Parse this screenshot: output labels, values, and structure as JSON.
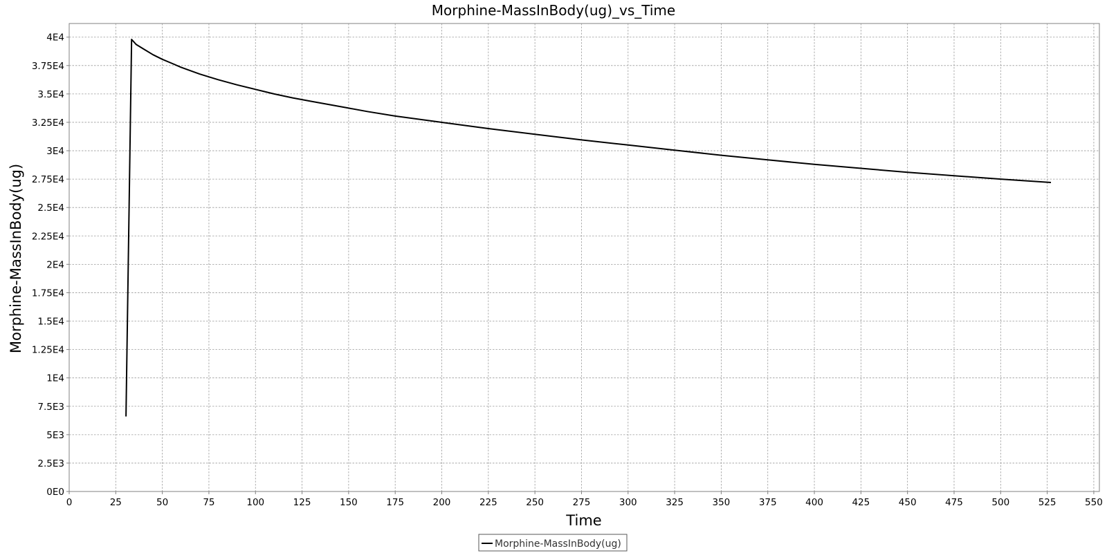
{
  "chart_data": {
    "type": "line",
    "title": "Morphine-MassInBody(ug)_vs_Time",
    "xlabel": "Time",
    "ylabel": "Morphine-MassInBody(ug)",
    "xlim": [
      0,
      553
    ],
    "ylim": [
      0,
      41200
    ],
    "x_ticks": [
      0,
      25,
      50,
      75,
      100,
      125,
      150,
      175,
      200,
      225,
      250,
      275,
      300,
      325,
      350,
      375,
      400,
      425,
      450,
      475,
      500,
      525,
      550
    ],
    "x_tick_labels": [
      "0",
      "25",
      "50",
      "75",
      "100",
      "125",
      "150",
      "175",
      "200",
      "225",
      "250",
      "275",
      "300",
      "325",
      "350",
      "375",
      "400",
      "425",
      "450",
      "475",
      "500",
      "525",
      "550"
    ],
    "y_ticks": [
      0,
      2500,
      5000,
      7500,
      10000,
      12500,
      15000,
      17500,
      20000,
      22500,
      25000,
      27500,
      30000,
      32500,
      35000,
      37500,
      40000
    ],
    "y_tick_labels": [
      "0E0",
      "2.5E3",
      "5E3",
      "7.5E3",
      "1E4",
      "1.25E4",
      "1.5E4",
      "1.75E4",
      "2E4",
      "2.25E4",
      "2.5E4",
      "2.75E4",
      "3E4",
      "3.25E4",
      "3.5E4",
      "3.75E4",
      "4E4"
    ],
    "grid": true,
    "legend_position": "bottom-center",
    "series": [
      {
        "name": "Morphine-MassInBody(ug)",
        "color": "#000000",
        "x": [
          30.5,
          33.5,
          36,
          40,
          45,
          50,
          55,
          60,
          65,
          70,
          75,
          80,
          90,
          100,
          110,
          120,
          130,
          140,
          150,
          160,
          175,
          200,
          225,
          250,
          275,
          300,
          325,
          350,
          375,
          400,
          425,
          450,
          475,
          500,
          527
        ],
        "y": [
          6600,
          39800,
          39350,
          38950,
          38450,
          38050,
          37700,
          37350,
          37050,
          36750,
          36500,
          36250,
          35800,
          35400,
          35000,
          34650,
          34350,
          34050,
          33750,
          33450,
          33050,
          32500,
          31950,
          31450,
          30950,
          30500,
          30050,
          29600,
          29200,
          28800,
          28450,
          28100,
          27800,
          27500,
          27200
        ]
      }
    ]
  }
}
